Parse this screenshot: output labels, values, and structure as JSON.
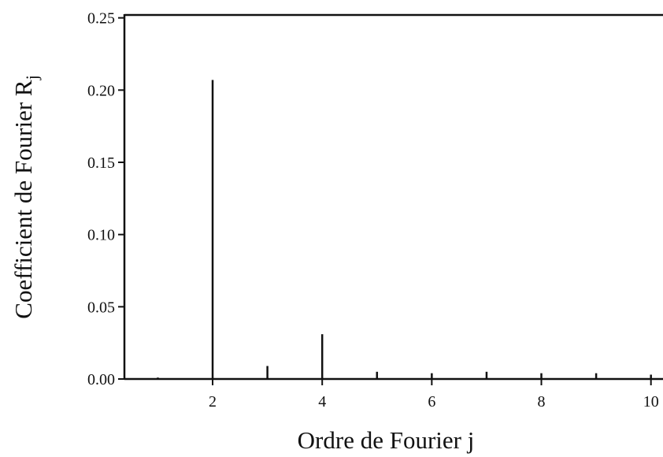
{
  "chart_data": {
    "type": "stem",
    "xlabel": "Ordre de Fourier j",
    "ylabel": {
      "text": "Coefficient de Fourier R",
      "subscript": "j"
    },
    "x": [
      1,
      2,
      3,
      4,
      5,
      6,
      7,
      8,
      9,
      10
    ],
    "values": [
      0.001,
      0.207,
      0.009,
      0.031,
      0.005,
      0.004,
      0.005,
      0.004,
      0.004,
      0.003
    ],
    "color": "#111111",
    "xlim": [
      0.39,
      10.22
    ],
    "ylim": [
      0,
      0.252
    ],
    "xticks": [
      2,
      4,
      6,
      8,
      10
    ],
    "yticks": [
      {
        "value": 0,
        "label": "0.00"
      },
      {
        "value": 0.05,
        "label": "0.05"
      },
      {
        "value": 0.1,
        "label": "0.10"
      },
      {
        "value": 0.15,
        "label": "0.15"
      },
      {
        "value": 0.2,
        "label": "0.20"
      },
      {
        "value": 0.25,
        "label": "0.25"
      }
    ],
    "grid": false
  }
}
